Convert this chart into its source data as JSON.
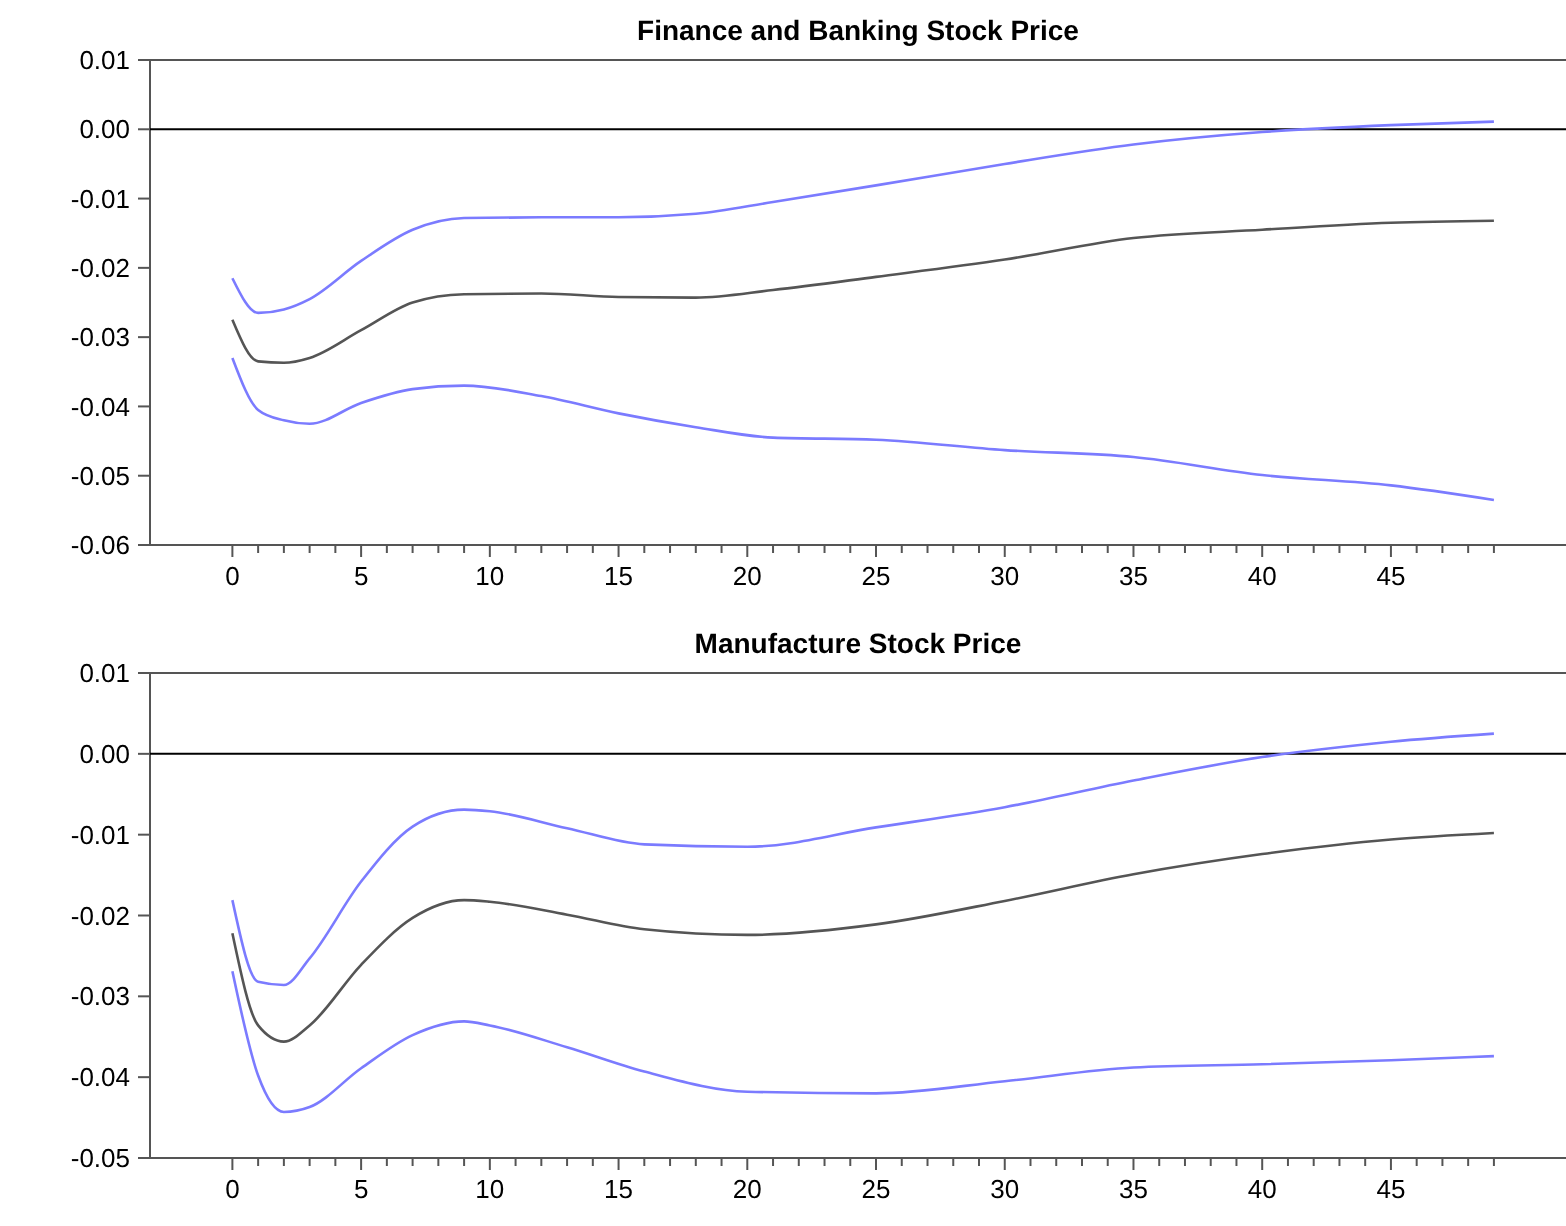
{
  "chart_data": [
    {
      "type": "line",
      "title": "Finance and Banking Stock Price",
      "x": [
        0,
        1,
        2,
        3,
        5,
        7,
        9,
        12,
        15,
        18,
        21,
        25,
        30,
        35,
        40,
        45,
        49
      ],
      "xlim": [
        -3.2,
        51.8
      ],
      "xticks": [
        0,
        {
          "value": 1,
          "label": null
        },
        {
          "value": 2,
          "label": null
        },
        {
          "value": 3,
          "label": null
        },
        {
          "value": 4,
          "label": null
        },
        5,
        {
          "value": 6,
          "label": null
        },
        {
          "value": 7,
          "label": null
        },
        {
          "value": 8,
          "label": null
        },
        {
          "value": 9,
          "label": null
        },
        10,
        {
          "value": 11,
          "label": null
        },
        {
          "value": 12,
          "label": null
        },
        {
          "value": 13,
          "label": null
        },
        {
          "value": 14,
          "label": null
        },
        15,
        {
          "value": 16,
          "label": null
        },
        {
          "value": 17,
          "label": null
        },
        {
          "value": 18,
          "label": null
        },
        {
          "value": 19,
          "label": null
        },
        20,
        {
          "value": 21,
          "label": null
        },
        {
          "value": 22,
          "label": null
        },
        {
          "value": 23,
          "label": null
        },
        {
          "value": 24,
          "label": null
        },
        25,
        {
          "value": 26,
          "label": null
        },
        {
          "value": 27,
          "label": null
        },
        {
          "value": 28,
          "label": null
        },
        {
          "value": 29,
          "label": null
        },
        30,
        {
          "value": 31,
          "label": null
        },
        {
          "value": 32,
          "label": null
        },
        {
          "value": 33,
          "label": null
        },
        {
          "value": 34,
          "label": null
        },
        35,
        {
          "value": 36,
          "label": null
        },
        {
          "value": 37,
          "label": null
        },
        {
          "value": 38,
          "label": null
        },
        {
          "value": 39,
          "label": null
        },
        40,
        {
          "value": 41,
          "label": null
        },
        {
          "value": 42,
          "label": null
        },
        {
          "value": 43,
          "label": null
        },
        {
          "value": 44,
          "label": null
        },
        45,
        {
          "value": 46,
          "label": null
        },
        {
          "value": 47,
          "label": null
        },
        {
          "value": 48,
          "label": null
        },
        {
          "value": 49,
          "label": null
        }
      ],
      "ylim": [
        -0.06,
        0.01
      ],
      "yticks": [
        0.01,
        {
          "value": 0,
          "label": "0.00"
        },
        -0.01,
        -0.02,
        -0.03,
        -0.04,
        -0.05,
        -0.06
      ],
      "ref_lines": [
        {
          "axis": "y",
          "value": 0,
          "color": "#000000"
        }
      ],
      "series": [
        {
          "color": "#7b7bff",
          "values": [
            -0.0215,
            -0.0265,
            -0.026,
            -0.0245,
            -0.019,
            -0.0145,
            -0.0128,
            -0.0127,
            -0.0127,
            -0.0122,
            -0.0105,
            -0.0081,
            -0.005,
            -0.0022,
            -0.0004,
            0.0006,
            0.0011
          ]
        },
        {
          "color": "#555555",
          "values": [
            -0.0275,
            -0.0335,
            -0.0337,
            -0.033,
            -0.029,
            -0.025,
            -0.0238,
            -0.0237,
            -0.0242,
            -0.0243,
            -0.0232,
            -0.0213,
            -0.0188,
            -0.0157,
            -0.0145,
            -0.0135,
            -0.0132
          ]
        },
        {
          "color": "#7b7bff",
          "values": [
            -0.033,
            -0.0405,
            -0.042,
            -0.0425,
            -0.0395,
            -0.0375,
            -0.037,
            -0.0385,
            -0.041,
            -0.043,
            -0.0445,
            -0.0448,
            -0.0463,
            -0.0473,
            -0.0499,
            -0.0514,
            -0.0535
          ]
        }
      ]
    },
    {
      "type": "line",
      "title": "Manufacture Stock Price",
      "x": [
        0,
        1,
        2,
        3,
        5,
        7,
        9,
        10,
        13,
        16,
        20,
        25,
        30,
        35,
        40,
        45,
        49
      ],
      "xlim": [
        -3.2,
        51.8
      ],
      "xticks": [
        0,
        {
          "value": 1,
          "label": null
        },
        {
          "value": 2,
          "label": null
        },
        {
          "value": 3,
          "label": null
        },
        {
          "value": 4,
          "label": null
        },
        5,
        {
          "value": 6,
          "label": null
        },
        {
          "value": 7,
          "label": null
        },
        {
          "value": 8,
          "label": null
        },
        {
          "value": 9,
          "label": null
        },
        10,
        {
          "value": 11,
          "label": null
        },
        {
          "value": 12,
          "label": null
        },
        {
          "value": 13,
          "label": null
        },
        {
          "value": 14,
          "label": null
        },
        15,
        {
          "value": 16,
          "label": null
        },
        {
          "value": 17,
          "label": null
        },
        {
          "value": 18,
          "label": null
        },
        {
          "value": 19,
          "label": null
        },
        20,
        {
          "value": 21,
          "label": null
        },
        {
          "value": 22,
          "label": null
        },
        {
          "value": 23,
          "label": null
        },
        {
          "value": 24,
          "label": null
        },
        25,
        {
          "value": 26,
          "label": null
        },
        {
          "value": 27,
          "label": null
        },
        {
          "value": 28,
          "label": null
        },
        {
          "value": 29,
          "label": null
        },
        30,
        {
          "value": 31,
          "label": null
        },
        {
          "value": 32,
          "label": null
        },
        {
          "value": 33,
          "label": null
        },
        {
          "value": 34,
          "label": null
        },
        35,
        {
          "value": 36,
          "label": null
        },
        {
          "value": 37,
          "label": null
        },
        {
          "value": 38,
          "label": null
        },
        {
          "value": 39,
          "label": null
        },
        40,
        {
          "value": 41,
          "label": null
        },
        {
          "value": 42,
          "label": null
        },
        {
          "value": 43,
          "label": null
        },
        {
          "value": 44,
          "label": null
        },
        45,
        {
          "value": 46,
          "label": null
        },
        {
          "value": 47,
          "label": null
        },
        {
          "value": 48,
          "label": null
        },
        {
          "value": 49,
          "label": null
        }
      ],
      "ylim": [
        -0.05,
        0.01
      ],
      "yticks": [
        0.01,
        {
          "value": 0,
          "label": "0.00"
        },
        -0.01,
        -0.02,
        -0.03,
        -0.04,
        -0.05
      ],
      "ref_lines": [
        {
          "axis": "y",
          "value": 0,
          "color": "#000000"
        }
      ],
      "series": [
        {
          "color": "#7b7bff",
          "values": [
            -0.0181,
            -0.0282,
            -0.0286,
            -0.0253,
            -0.0158,
            -0.009,
            -0.0069,
            -0.0071,
            -0.0092,
            -0.0112,
            -0.0115,
            -0.0091,
            -0.0066,
            -0.0033,
            -0.0004,
            0.0015,
            0.0025
          ]
        },
        {
          "color": "#555555",
          "values": [
            -0.0222,
            -0.0336,
            -0.0356,
            -0.0336,
            -0.0261,
            -0.0203,
            -0.0181,
            -0.0183,
            -0.0199,
            -0.0217,
            -0.0224,
            -0.0211,
            -0.0182,
            -0.0149,
            -0.0124,
            -0.0106,
            -0.0098
          ]
        },
        {
          "color": "#7b7bff",
          "values": [
            -0.0269,
            -0.0398,
            -0.0443,
            -0.0437,
            -0.0389,
            -0.0348,
            -0.0331,
            -0.0336,
            -0.0363,
            -0.0393,
            -0.0418,
            -0.042,
            -0.0405,
            -0.0388,
            -0.0384,
            -0.0379,
            -0.0374
          ]
        }
      ]
    }
  ]
}
